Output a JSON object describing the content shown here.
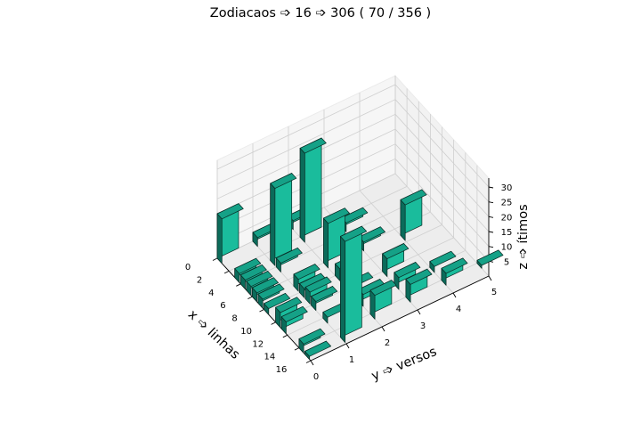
{
  "chart_data": {
    "type": "bar3d",
    "title": "Zodiacaos ➩ 16 ➩ 306 ( 70 / 356 )",
    "xlabel": "x ➩ linhas",
    "ylabel": "y ➩ versos",
    "zlabel": "z ➩ ítimos",
    "x_ticks": [
      "0",
      "2",
      "4",
      "6",
      "8",
      "10",
      "12",
      "14",
      "16"
    ],
    "y_ticks": [
      "0",
      "1",
      "2",
      "3",
      "4",
      "5"
    ],
    "z_ticks": [
      "5",
      "10",
      "15",
      "20",
      "25",
      "30"
    ],
    "xlim": [
      0,
      16
    ],
    "ylim": [
      0,
      5
    ],
    "zlim": [
      0,
      33
    ],
    "grid": true,
    "bar_color": "#1abc9c",
    "bars": [
      {
        "x": 0,
        "y": 0,
        "z": 15
      },
      {
        "x": 3,
        "y": 0,
        "z": 3
      },
      {
        "x": 4,
        "y": 0,
        "z": 3
      },
      {
        "x": 5,
        "y": 0,
        "z": 3
      },
      {
        "x": 6,
        "y": 0,
        "z": 3
      },
      {
        "x": 7,
        "y": 0,
        "z": 3
      },
      {
        "x": 8,
        "y": 0,
        "z": 2
      },
      {
        "x": 10,
        "y": 0,
        "z": 5
      },
      {
        "x": 11,
        "y": 0,
        "z": 4
      },
      {
        "x": 14,
        "y": 0,
        "z": 3
      },
      {
        "x": 15,
        "y": 0,
        "z": 1
      },
      {
        "x": 0,
        "y": 1,
        "z": 3
      },
      {
        "x": 3,
        "y": 1,
        "z": 26
      },
      {
        "x": 4,
        "y": 1,
        "z": 3
      },
      {
        "x": 7,
        "y": 1,
        "z": 4
      },
      {
        "x": 8,
        "y": 1,
        "z": 3
      },
      {
        "x": 9,
        "y": 1,
        "z": 4
      },
      {
        "x": 10,
        "y": 1,
        "z": 3
      },
      {
        "x": 12,
        "y": 1,
        "z": 2
      },
      {
        "x": 15,
        "y": 1,
        "z": 34
      },
      {
        "x": 0,
        "y": 2,
        "z": 3
      },
      {
        "x": 2,
        "y": 2,
        "z": 30
      },
      {
        "x": 6,
        "y": 2,
        "z": 15
      },
      {
        "x": 8,
        "y": 2,
        "z": 4
      },
      {
        "x": 10,
        "y": 2,
        "z": 2
      },
      {
        "x": 12,
        "y": 2,
        "z": 4
      },
      {
        "x": 14,
        "y": 2,
        "z": 8
      },
      {
        "x": 3,
        "y": 3,
        "z": 3
      },
      {
        "x": 6,
        "y": 3,
        "z": 3
      },
      {
        "x": 10,
        "y": 3,
        "z": 6
      },
      {
        "x": 12,
        "y": 3,
        "z": 4
      },
      {
        "x": 14,
        "y": 3,
        "z": 6
      },
      {
        "x": 7,
        "y": 4,
        "z": 12
      },
      {
        "x": 12,
        "y": 4,
        "z": 2
      },
      {
        "x": 14,
        "y": 4,
        "z": 4
      },
      {
        "x": 14,
        "y": 5,
        "z": 1
      }
    ]
  }
}
